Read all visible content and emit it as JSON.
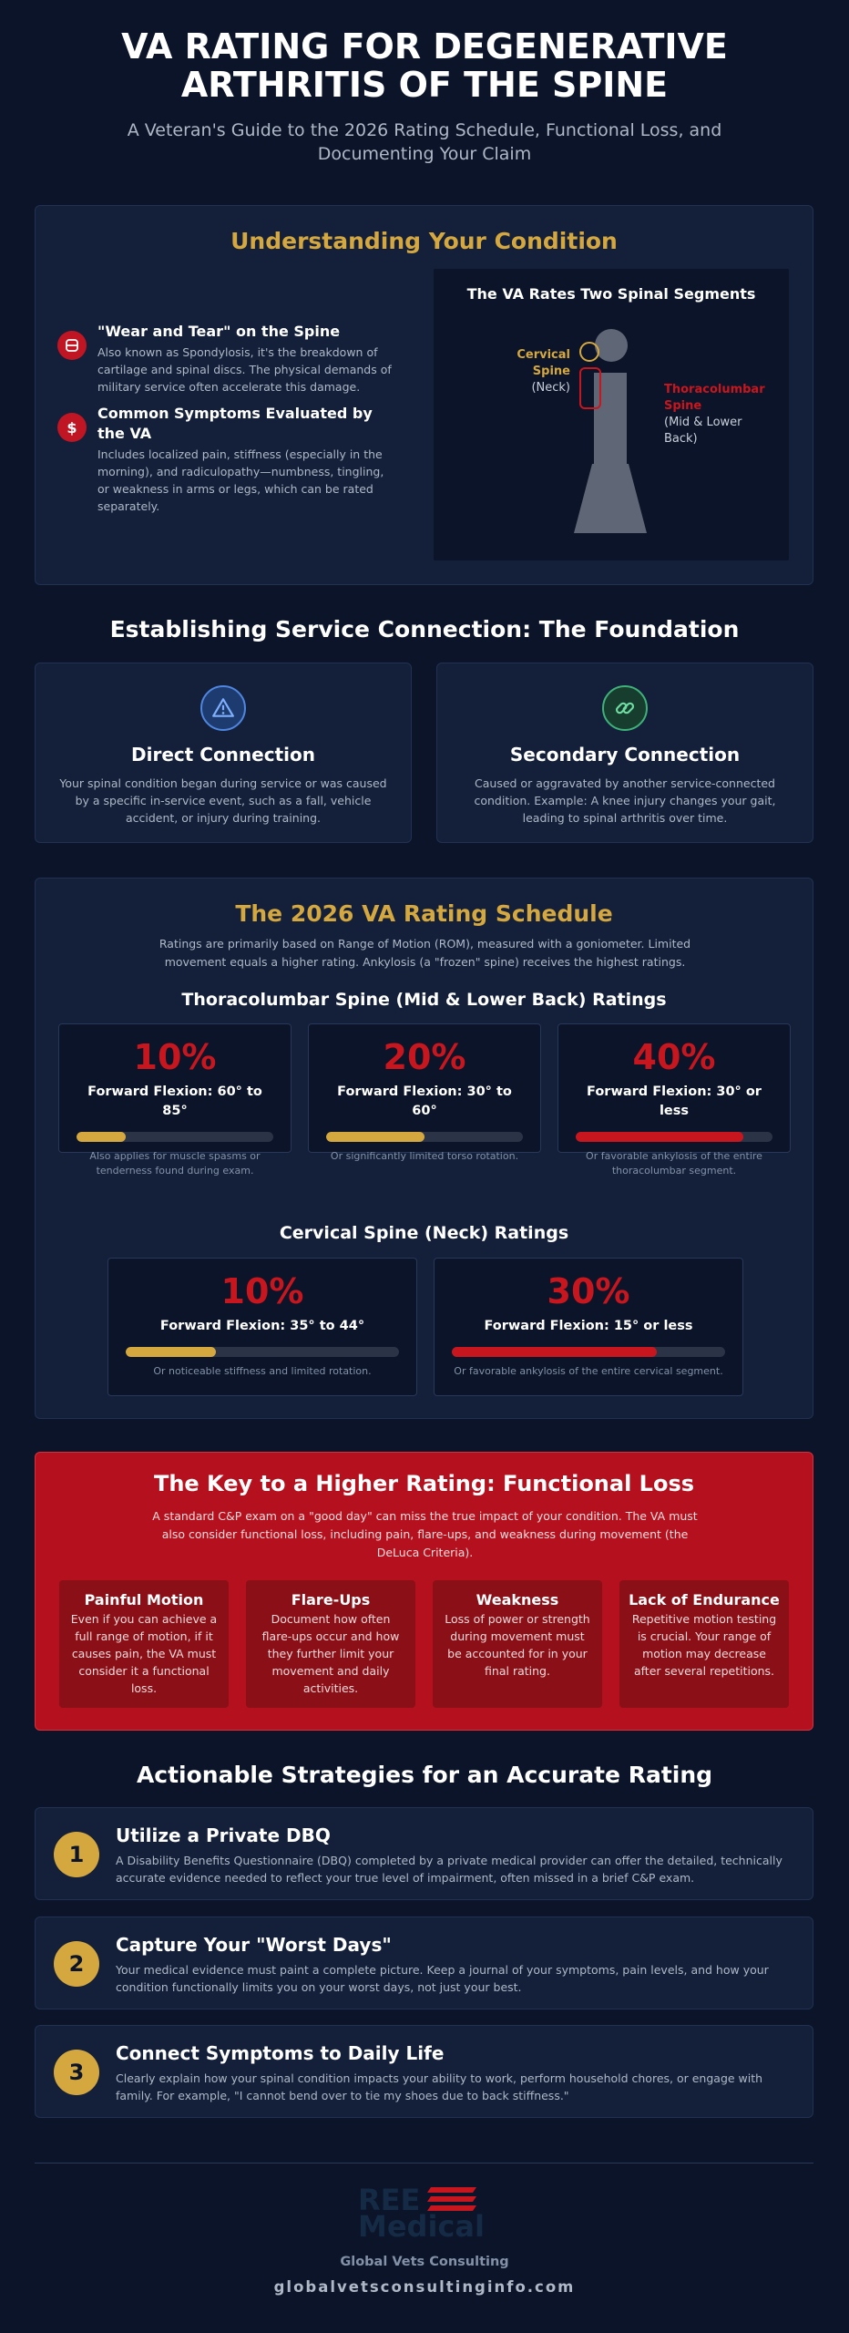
{
  "header": {
    "title": "VA RATING FOR DEGENERATIVE ARTHRITIS OF THE SPINE",
    "subtitle": "A Veteran's Guide to the 2026 Rating Schedule, Functional Loss, and Documenting Your Claim"
  },
  "understanding": {
    "heading": "Understanding Your Condition",
    "items": [
      {
        "icon": "disc-icon",
        "title": "\"Wear and Tear\" on the Spine",
        "text": "Also known as Spondylosis, it's the breakdown of cartilage and spinal discs. The physical demands of military service often accelerate this damage."
      },
      {
        "icon": "dollar-icon",
        "title": "Common Symptoms Evaluated by the VA",
        "text": "Includes localized pain, stiffness (especially in the morning), and radiculopathy—numbness, tingling, or weakness in arms or legs, which can be rated separately."
      }
    ],
    "spine_figure": {
      "title": "The VA Rates Two Spinal Segments",
      "cervical_label_1": "Cervical",
      "cervical_label_2": "Spine",
      "cervical_sub": "(Neck)",
      "thoraco_label_1": "Thoracolumbar",
      "thoraco_label_2": "Spine",
      "thoraco_sub_1": "(Mid & Lower",
      "thoraco_sub_2": "Back)",
      "cervical_color": "#d5a83f",
      "thoraco_color": "#c8161f"
    }
  },
  "service_connection": {
    "heading": "Establishing Service Connection: The Foundation",
    "cards": [
      {
        "icon": "warning-icon",
        "title": "Direct Connection",
        "text": "Your spinal condition began during service or was caused by a specific in-service event, such as a fall, vehicle accident, or injury during training."
      },
      {
        "icon": "link-icon",
        "title": "Secondary Connection",
        "text": "Caused or aggravated by another service-connected condition. Example: A knee injury changes your gait, leading to spinal arthritis over time."
      }
    ]
  },
  "schedule": {
    "heading": "The 2026 VA Rating Schedule",
    "intro": "Ratings are primarily based on Range of Motion (ROM), measured with a goniometer. Limited movement equals a higher rating. Ankylosis (a \"frozen\" spine) receives the highest ratings.",
    "thoraco_heading": "Thoracolumbar Spine (Mid & Lower Back) Ratings",
    "thoraco": [
      {
        "pct": "10%",
        "label": "Forward Flexion: 60° to 85°",
        "note": "Also applies for muscle spasms or tenderness found during exam.",
        "fill": 0.25,
        "color": "#d5a83f"
      },
      {
        "pct": "20%",
        "label": "Forward Flexion: 30° to 60°",
        "note": "Or significantly limited torso rotation.",
        "fill": 0.5,
        "color": "#d5a83f"
      },
      {
        "pct": "40%",
        "label": "Forward Flexion: 30° or less",
        "note": "Or favorable ankylosis of the entire thoracolumbar segment.",
        "fill": 0.85,
        "color": "#c8161f"
      }
    ],
    "cervical_heading": "Cervical Spine (Neck) Ratings",
    "cervical": [
      {
        "pct": "10%",
        "label": "Forward Flexion: 35° to 44°",
        "note": "Or noticeable stiffness and limited rotation.",
        "fill": 0.33,
        "color": "#d5a83f"
      },
      {
        "pct": "30%",
        "label": "Forward Flexion: 15° or less",
        "note": "Or favorable ankylosis of the entire cervical segment.",
        "fill": 0.75,
        "color": "#c8161f"
      }
    ]
  },
  "functional_loss": {
    "heading": "The Key to a Higher Rating: Functional Loss",
    "intro": "A standard C&P exam on a \"good day\" can miss the true impact of your condition. The VA must also consider functional loss, including pain, flare-ups, and weakness during movement (the DeLuca Criteria).",
    "cards": [
      {
        "title": "Painful Motion",
        "text": "Even if you can achieve a full range of motion, if it causes pain, the VA must consider it a functional loss."
      },
      {
        "title": "Flare-Ups",
        "text": "Document how often flare-ups occur and how they further limit your movement and daily activities."
      },
      {
        "title": "Weakness",
        "text": "Loss of power or strength during movement must be accounted for in your final rating."
      },
      {
        "title": "Lack of Endurance",
        "text": "Repetitive motion testing is crucial. Your range of motion may decrease after several repetitions."
      }
    ]
  },
  "strategies": {
    "heading": "Actionable Strategies for an Accurate Rating",
    "items": [
      {
        "num": "1",
        "title": "Utilize a Private DBQ",
        "text": "A Disability Benefits Questionnaire (DBQ) completed by a private medical provider can offer the detailed, technically accurate evidence needed to reflect your true level of impairment, often missed in a brief C&P exam."
      },
      {
        "num": "2",
        "title": "Capture Your \"Worst Days\"",
        "text": "Your medical evidence must paint a complete picture. Keep a journal of your symptoms, pain levels, and how your condition functionally limits you on your worst days, not just your best."
      },
      {
        "num": "3",
        "title": "Connect Symptoms to Daily Life",
        "text": "Clearly explain how your spinal condition impacts your ability to work, perform household chores, or engage with family. For example, \"I cannot bend over to tie my shoes due to back stiffness.\""
      }
    ]
  },
  "footer": {
    "logo_line_1": "REE",
    "logo_line_2": "Medical",
    "org": "Global Vets Consulting",
    "url": "globalvetsconsultinginfo.com"
  }
}
